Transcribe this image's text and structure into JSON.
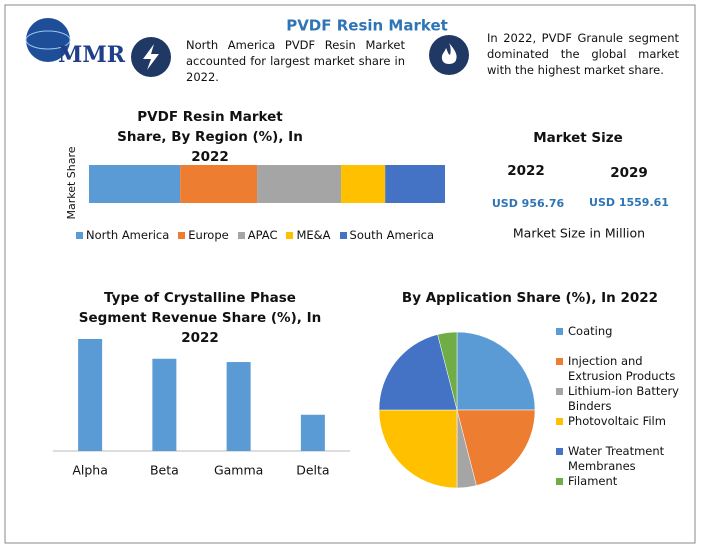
{
  "logo": "MMR",
  "header": {
    "title": "PVDF Resin Market"
  },
  "notes": [
    "North America PVDF Resin Market accounted for largest market share in 2022.",
    "In 2022, PVDF Granule segment dominated the global market with the highest market share."
  ],
  "market_size": {
    "title": "Market Size",
    "columns": [
      {
        "year": "2022",
        "value": "USD 956.76"
      },
      {
        "year": "2029",
        "value": "USD 1559.61"
      }
    ],
    "footer": "Market Size in Million"
  },
  "chart_data": [
    {
      "type": "bar",
      "stacked": true,
      "orientation": "horizontal",
      "title": "PVDF Resin Market Share, By Region (%), In 2022",
      "y_label": "Market Share",
      "categories": [
        null
      ],
      "xlim": [
        0,
        100
      ],
      "legend": "bottom",
      "series": [
        {
          "name": "North America",
          "color": "#5b9bd5",
          "values": [
            25.6
          ]
        },
        {
          "name": "Europe",
          "color": "#ed7d31",
          "values": [
            21.6
          ]
        },
        {
          "name": "APAC",
          "color": "#a5a5a5",
          "values": [
            23.6
          ]
        },
        {
          "name": "ME&A",
          "color": "#ffc000",
          "values": [
            12.4
          ]
        },
        {
          "name": "South America",
          "color": "#4472c4",
          "values": [
            16.8
          ]
        }
      ]
    },
    {
      "type": "bar",
      "title": "Type of Crystalline Phase Segment Revenue Share (%), In 2022",
      "categories": [
        "Alpha",
        "Beta",
        "Gamma",
        "Delta"
      ],
      "values": [
        34,
        28,
        27,
        11
      ],
      "color": "#5b9bd5",
      "ylim": [
        0,
        34
      ]
    },
    {
      "type": "pie",
      "title": "By Application Share (%), In 2022",
      "legend": "right",
      "categories": [
        "Coating",
        "Injection and Extrusion Products",
        "Lithium-ion Battery Binders",
        "Photovoltaic Film",
        "Water Treatment Membranes",
        "Filament"
      ],
      "values": [
        25,
        21,
        4,
        25,
        21,
        4
      ],
      "colors": [
        "#5b9bd5",
        "#ed7d31",
        "#a5a5a5",
        "#ffc000",
        "#4472c4",
        "#70ad47"
      ]
    }
  ]
}
